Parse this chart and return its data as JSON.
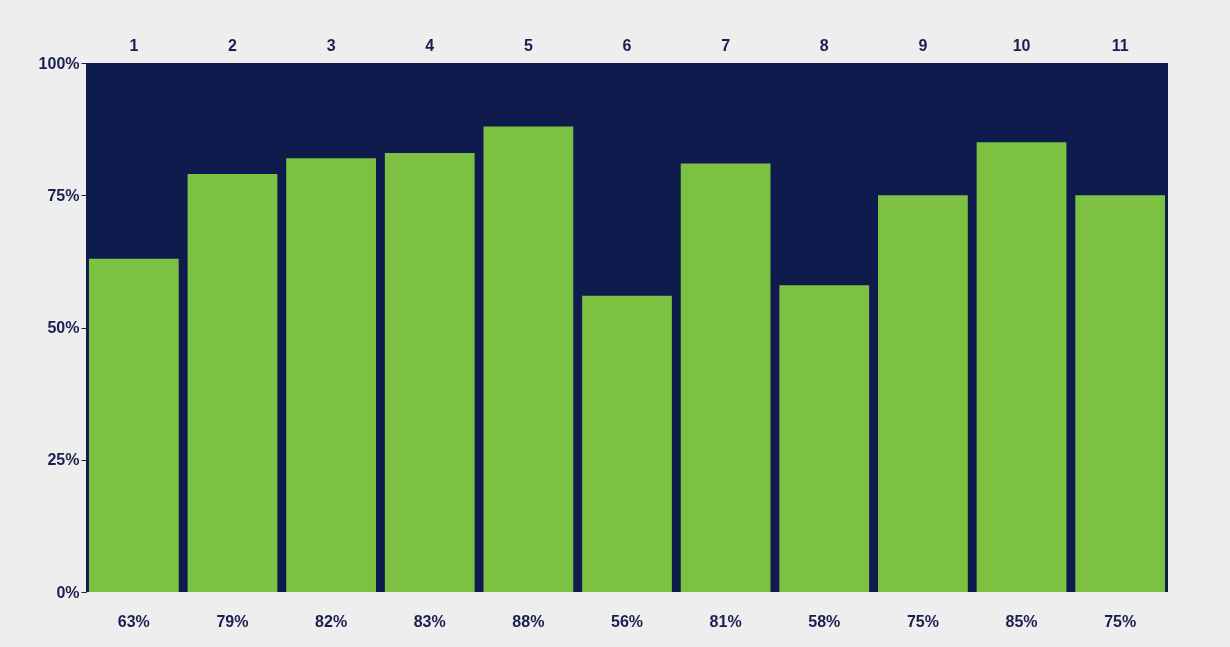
{
  "chart_data": {
    "type": "bar",
    "categories": [
      "1",
      "2",
      "3",
      "4",
      "5",
      "6",
      "7",
      "8",
      "9",
      "10",
      "11"
    ],
    "values": [
      63,
      79,
      82,
      83,
      88,
      56,
      81,
      58,
      75,
      85,
      75
    ],
    "color": "#7dc142",
    "bands": [
      {
        "axis": "y",
        "from": 0,
        "to": 100,
        "color": "#0f1a4d"
      }
    ],
    "value_labels": [
      "63%",
      "79%",
      "82%",
      "83%",
      "88%",
      "56%",
      "81%",
      "58%",
      "75%",
      "85%",
      "75%"
    ],
    "ylim": [
      0,
      100
    ],
    "yticks": [
      {
        "value": 0,
        "label": "0%"
      },
      {
        "value": 25,
        "label": "25%"
      },
      {
        "value": 50,
        "label": "50%"
      },
      {
        "value": 75,
        "label": "75%"
      },
      {
        "value": 100,
        "label": "100%"
      }
    ]
  }
}
